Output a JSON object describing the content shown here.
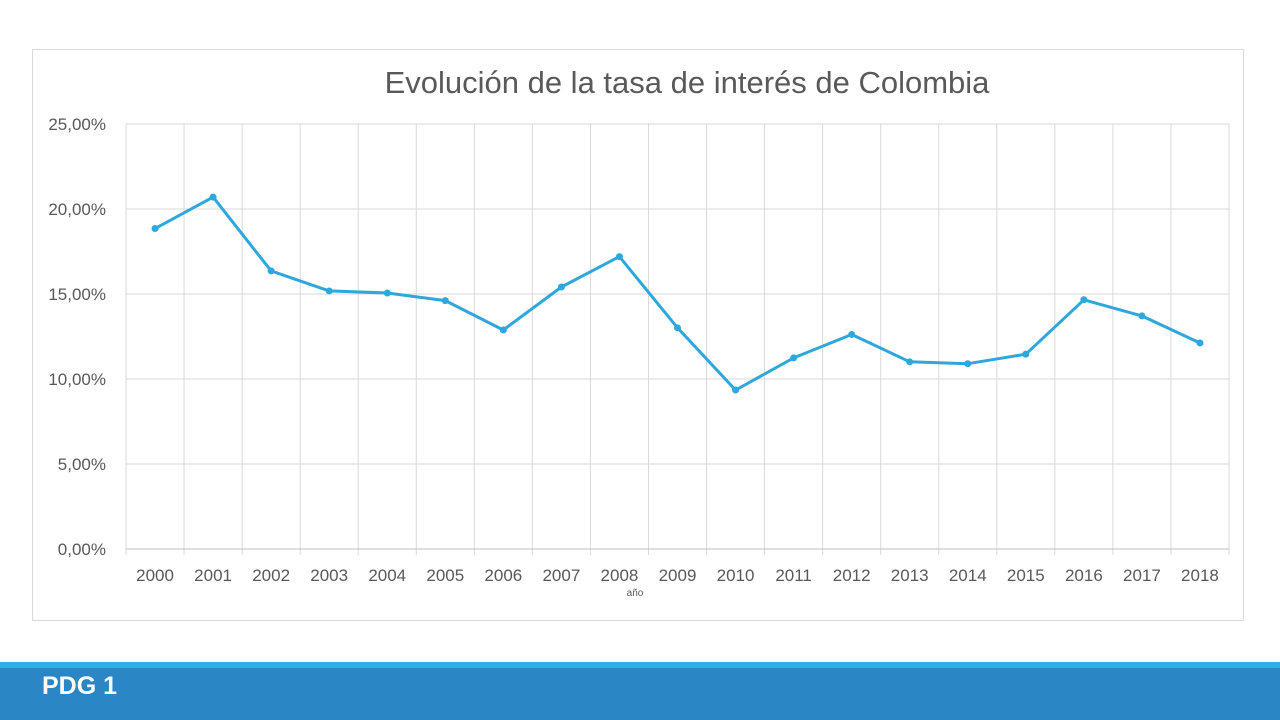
{
  "chart_data": {
    "type": "line",
    "title": "Evolución de la tasa de interés de Colombia",
    "xlabel": "año",
    "ylabel": "",
    "categories": [
      "2000",
      "2001",
      "2002",
      "2003",
      "2004",
      "2005",
      "2006",
      "2007",
      "2008",
      "2009",
      "2010",
      "2011",
      "2012",
      "2013",
      "2014",
      "2015",
      "2016",
      "2017",
      "2018"
    ],
    "series": [
      {
        "color": "#2ea8dc",
        "values": [
          0.1885,
          0.207,
          0.1636,
          0.1518,
          0.1506,
          0.1461,
          0.1288,
          0.1541,
          0.172,
          0.1301,
          0.0935,
          0.1124,
          0.1262,
          0.1101,
          0.109,
          0.1146,
          0.1466,
          0.1371,
          0.1212
        ]
      }
    ],
    "ylim": [
      0,
      0.25
    ],
    "yticks": [
      0,
      0.05,
      0.1,
      0.15,
      0.2,
      0.25
    ],
    "ytick_labels": [
      "0,00%",
      "5,00%",
      "10,00%",
      "15,00%",
      "20,00%",
      "25,00%"
    ],
    "grid": true,
    "legend": "none"
  },
  "footer": {
    "label": "PDG 1"
  }
}
